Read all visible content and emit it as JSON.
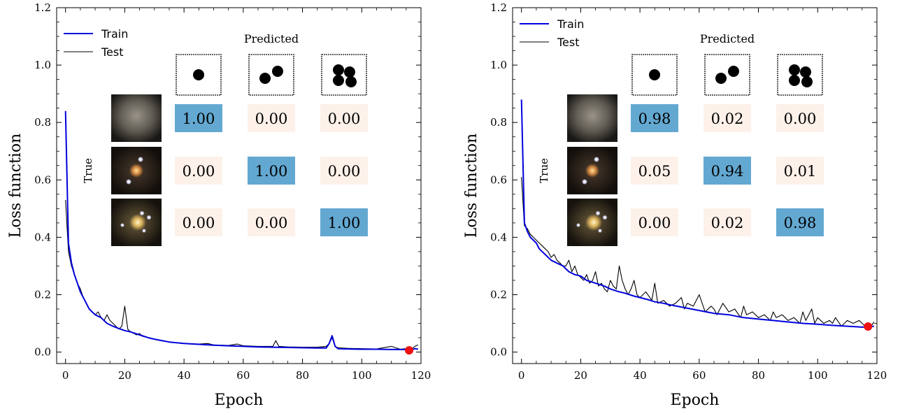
{
  "colors": {
    "train": "#0000dd",
    "test": "#000000",
    "marker": "#ee1111",
    "cell_high": "#63a8d1",
    "cell_low": "#fdf1ea"
  },
  "chart_data": [
    {
      "type": "line",
      "xlabel": "Epoch",
      "ylabel": "Loss function",
      "xlim": [
        -3,
        120
      ],
      "ylim": [
        -0.04,
        1.2
      ],
      "xticks": [
        "0",
        "20",
        "40",
        "60",
        "80",
        "100",
        "120"
      ],
      "yticks": [
        "0.0",
        "0.2",
        "0.4",
        "0.6",
        "0.8",
        "1.0",
        "1.2"
      ],
      "legend_position": "top-left",
      "series": [
        {
          "name": "Train",
          "x": [
            0,
            1,
            2,
            3,
            4,
            5,
            6,
            7,
            8,
            9,
            10,
            12,
            14,
            16,
            18,
            20,
            22,
            25,
            28,
            30,
            35,
            40,
            45,
            50,
            55,
            60,
            65,
            70,
            75,
            80,
            85,
            88,
            89,
            90,
            91,
            92,
            95,
            100,
            105,
            110,
            115,
            117,
            118,
            119
          ],
          "y": [
            0.84,
            0.38,
            0.31,
            0.27,
            0.24,
            0.21,
            0.19,
            0.17,
            0.15,
            0.14,
            0.13,
            0.12,
            0.1,
            0.09,
            0.082,
            0.075,
            0.07,
            0.06,
            0.05,
            0.045,
            0.035,
            0.03,
            0.027,
            0.024,
            0.022,
            0.02,
            0.018,
            0.017,
            0.016,
            0.015,
            0.014,
            0.014,
            0.03,
            0.057,
            0.02,
            0.012,
            0.011,
            0.01,
            0.01,
            0.009,
            0.009,
            0.009,
            0.012,
            0.01
          ]
        },
        {
          "name": "Test",
          "x": [
            0,
            1,
            2,
            3,
            4,
            5,
            6,
            7,
            8,
            9,
            10,
            11,
            12,
            13,
            14,
            15,
            16,
            17,
            18,
            19,
            20,
            21,
            22,
            24,
            25,
            26,
            28,
            30,
            32,
            35,
            38,
            40,
            45,
            48,
            50,
            55,
            58,
            60,
            65,
            70,
            71,
            72,
            75,
            80,
            85,
            88,
            89,
            90,
            91,
            92,
            95,
            100,
            105,
            110,
            113,
            115,
            117,
            118,
            119
          ],
          "y": [
            0.53,
            0.35,
            0.3,
            0.27,
            0.24,
            0.22,
            0.19,
            0.17,
            0.15,
            0.14,
            0.13,
            0.14,
            0.12,
            0.11,
            0.13,
            0.11,
            0.1,
            0.09,
            0.08,
            0.09,
            0.16,
            0.08,
            0.07,
            0.06,
            0.065,
            0.055,
            0.05,
            0.045,
            0.04,
            0.035,
            0.032,
            0.03,
            0.028,
            0.03,
            0.025,
            0.023,
            0.028,
            0.022,
            0.02,
            0.02,
            0.04,
            0.02,
            0.018,
            0.017,
            0.017,
            0.02,
            0.03,
            0.05,
            0.02,
            0.015,
            0.013,
            0.012,
            0.011,
            0.02,
            0.01,
            0.012,
            0.012,
            0.02,
            0.025
          ]
        }
      ],
      "final_point": {
        "x": 116,
        "y": 0.006
      },
      "inset": {
        "title": "Predicted",
        "row_label": "True",
        "matrix": [
          [
            "1.00",
            "0.00",
            "0.00"
          ],
          [
            "0.00",
            "1.00",
            "0.00"
          ],
          [
            "0.00",
            "0.00",
            "1.00"
          ]
        ]
      }
    },
    {
      "type": "line",
      "xlabel": "Epoch",
      "ylabel": "Loss function",
      "xlim": [
        -3,
        120
      ],
      "ylim": [
        -0.04,
        1.2
      ],
      "xticks": [
        "0",
        "20",
        "40",
        "60",
        "80",
        "100",
        "120"
      ],
      "yticks": [
        "0.0",
        "0.2",
        "0.4",
        "0.6",
        "0.8",
        "1.0",
        "1.2"
      ],
      "legend_position": "top-left",
      "series": [
        {
          "name": "Train",
          "x": [
            0,
            1,
            2,
            3,
            4,
            5,
            6,
            8,
            10,
            12,
            14,
            16,
            18,
            20,
            22,
            25,
            28,
            30,
            33,
            35,
            38,
            40,
            43,
            45,
            48,
            50,
            55,
            60,
            65,
            70,
            75,
            80,
            85,
            90,
            95,
            100,
            105,
            110,
            115,
            117,
            119
          ],
          "y": [
            0.88,
            0.45,
            0.42,
            0.4,
            0.39,
            0.38,
            0.36,
            0.34,
            0.32,
            0.31,
            0.3,
            0.28,
            0.27,
            0.265,
            0.25,
            0.24,
            0.23,
            0.22,
            0.21,
            0.205,
            0.195,
            0.19,
            0.182,
            0.175,
            0.17,
            0.165,
            0.155,
            0.145,
            0.135,
            0.13,
            0.12,
            0.115,
            0.11,
            0.105,
            0.1,
            0.097,
            0.093,
            0.09,
            0.087,
            0.088,
            0.09
          ]
        },
        {
          "name": "Test",
          "x": [
            0,
            1,
            2,
            3,
            4,
            5,
            6,
            7,
            8,
            9,
            10,
            11,
            12,
            13,
            14,
            15,
            16,
            17,
            18,
            19,
            20,
            21,
            22,
            23,
            24,
            25,
            26,
            27,
            28,
            29,
            30,
            31,
            32,
            33,
            34,
            35,
            36,
            37,
            38,
            39,
            40,
            42,
            44,
            45,
            46,
            48,
            50,
            52,
            54,
            55,
            56,
            58,
            60,
            62,
            64,
            65,
            66,
            68,
            70,
            72,
            74,
            75,
            76,
            78,
            80,
            82,
            84,
            85,
            86,
            88,
            90,
            92,
            94,
            95,
            96,
            98,
            99,
            100,
            102,
            104,
            105,
            106,
            108,
            110,
            112,
            114,
            116,
            117,
            118,
            119
          ],
          "y": [
            0.61,
            0.44,
            0.43,
            0.41,
            0.4,
            0.39,
            0.38,
            0.37,
            0.36,
            0.35,
            0.33,
            0.34,
            0.32,
            0.31,
            0.3,
            0.3,
            0.32,
            0.28,
            0.3,
            0.27,
            0.26,
            0.25,
            0.27,
            0.24,
            0.25,
            0.28,
            0.23,
            0.24,
            0.22,
            0.21,
            0.25,
            0.23,
            0.22,
            0.3,
            0.25,
            0.22,
            0.2,
            0.22,
            0.25,
            0.2,
            0.19,
            0.21,
            0.18,
            0.24,
            0.17,
            0.18,
            0.16,
            0.17,
            0.19,
            0.15,
            0.17,
            0.16,
            0.2,
            0.14,
            0.16,
            0.15,
            0.13,
            0.17,
            0.14,
            0.15,
            0.12,
            0.16,
            0.13,
            0.14,
            0.12,
            0.13,
            0.11,
            0.14,
            0.12,
            0.13,
            0.11,
            0.12,
            0.1,
            0.14,
            0.11,
            0.15,
            0.1,
            0.12,
            0.1,
            0.11,
            0.1,
            0.12,
            0.09,
            0.11,
            0.1,
            0.11,
            0.09,
            0.1,
            0.09,
            0.105
          ]
        }
      ],
      "final_point": {
        "x": 117,
        "y": 0.089
      },
      "inset": {
        "title": "Predicted",
        "row_label": "True",
        "matrix": [
          [
            "0.98",
            "0.02",
            "0.00"
          ],
          [
            "0.05",
            "0.94",
            "0.01"
          ],
          [
            "0.00",
            "0.02",
            "0.98"
          ]
        ]
      }
    }
  ]
}
